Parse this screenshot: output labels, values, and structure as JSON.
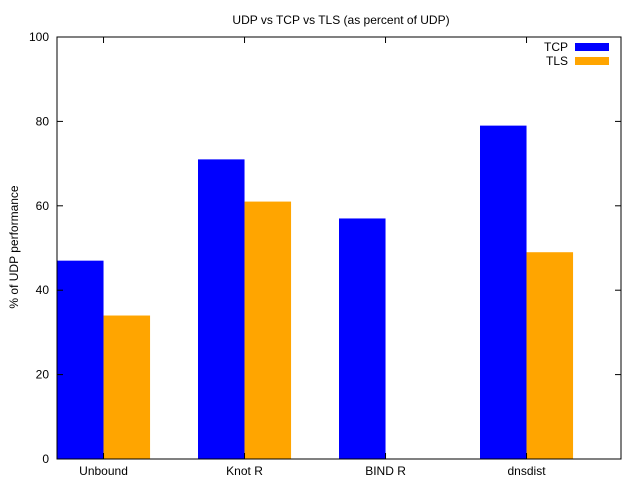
{
  "chart_data": {
    "type": "bar",
    "title": "UDP vs TCP vs TLS (as percent of UDP)",
    "ylabel": "% of UDP performance",
    "xlabel": "",
    "ylim": [
      0,
      100
    ],
    "yticks": [
      0,
      20,
      40,
      60,
      80,
      100
    ],
    "categories": [
      "Unbound",
      "Knot R",
      "BIND R",
      "dnsdist"
    ],
    "series": [
      {
        "name": "TCP",
        "color": "#0000ff",
        "values": [
          47,
          71,
          57,
          79
        ]
      },
      {
        "name": "TLS",
        "color": "#ffa500",
        "values": [
          34,
          61,
          null,
          49
        ]
      }
    ],
    "legend_position": "top-right",
    "grid": false
  }
}
